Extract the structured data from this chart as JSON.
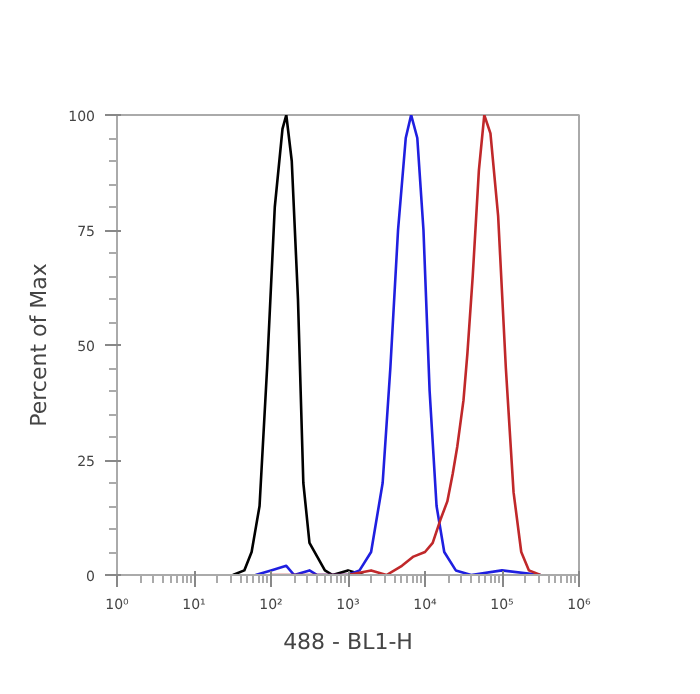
{
  "chart_data": {
    "type": "line",
    "xlabel": "488 - BL1-H",
    "ylabel": "Percent of Max",
    "log": "x",
    "grid": false,
    "marker": "none",
    "line_style": "solid",
    "xlim": [
      1,
      1000000
    ],
    "xticks": [
      {
        "value": 1,
        "label": "10⁰"
      },
      {
        "value": 10,
        "label": "10¹"
      },
      {
        "value": 100,
        "label": "10²"
      },
      {
        "value": 1000,
        "label": "10³"
      },
      {
        "value": 10000,
        "label": "10⁴"
      },
      {
        "value": 100000,
        "label": "10⁵"
      },
      {
        "value": 1000000,
        "label": "10⁶"
      }
    ],
    "ylim": [
      0,
      100
    ],
    "yticks": [
      0,
      25,
      50,
      75,
      100
    ],
    "series": [
      {
        "color": "#000000",
        "x": [
          32,
          45,
          56,
          71,
          89,
          112,
          141,
          158,
          186,
          224,
          263,
          316,
          398,
          501,
          631,
          1000,
          1585
        ],
        "values": [
          0,
          1,
          5,
          15,
          45,
          80,
          97,
          100,
          90,
          60,
          20,
          7,
          4,
          1,
          0,
          1,
          0
        ]
      },
      {
        "color": "#1f1fe0",
        "x": [
          63,
          100,
          158,
          200,
          316,
          398,
          1000,
          1413,
          1995,
          2818,
          3548,
          4467,
          5623,
          6607,
          7943,
          9550,
          11482,
          14125,
          17783,
          25119,
          39811,
          100000,
          316228
        ],
        "values": [
          0,
          1,
          2,
          0,
          1,
          0,
          0,
          1,
          5,
          20,
          45,
          75,
          95,
          100,
          95,
          75,
          40,
          15,
          5,
          1,
          0,
          1,
          0
        ]
      },
      {
        "color": "#c0282a",
        "x": [
          100,
          1000,
          1995,
          3162,
          5012,
          7079,
          10000,
          12589,
          15849,
          19498,
          22909,
          26303,
          31623,
          35481,
          41687,
          50119,
          58884,
          70795,
          89125,
          112202,
          141254,
          177828,
          223872,
          316228
        ],
        "values": [
          0,
          0,
          1,
          0,
          2,
          4,
          5,
          7,
          12,
          16,
          22,
          28,
          38,
          48,
          65,
          88,
          100,
          96,
          78,
          45,
          18,
          5,
          1,
          0
        ]
      }
    ]
  }
}
